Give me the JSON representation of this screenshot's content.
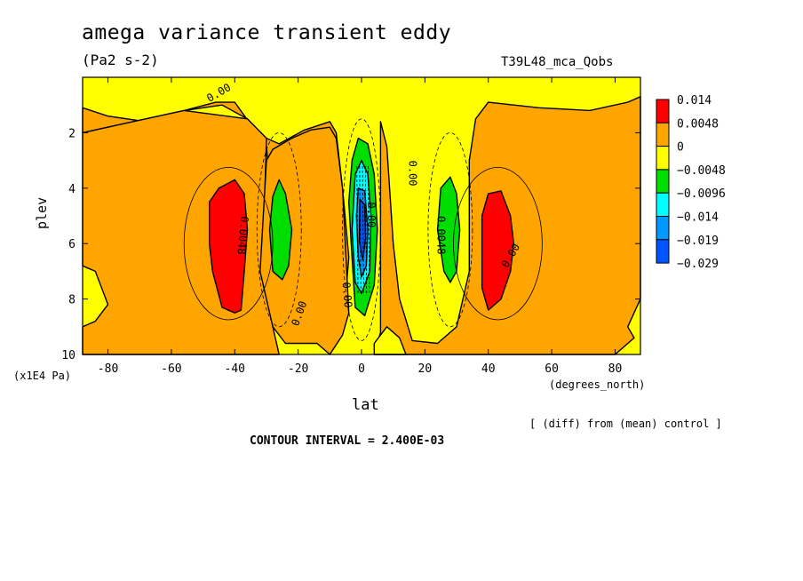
{
  "chart_data": {
    "type": "heatmap",
    "title": "amega variance transient eddy",
    "units": "(Pa2 s-2)",
    "run_label": "T39L48_mca_Qobs",
    "xlabel": "lat",
    "ylabel": "plev",
    "x_unit": "(degrees_north)",
    "y_unit": "(x1E4 Pa)",
    "xlim": [
      -88,
      88
    ],
    "ylim": [
      10,
      0
    ],
    "x_ticks": [
      "-80",
      "-60",
      "-40",
      "-20",
      "0",
      "20",
      "40",
      "60",
      "80"
    ],
    "x_tick_values": [
      -80,
      -60,
      -40,
      -20,
      0,
      20,
      40,
      60,
      80
    ],
    "y_ticks": [
      "2",
      "4",
      "6",
      "8",
      "10"
    ],
    "y_tick_values": [
      2,
      4,
      6,
      8,
      10
    ],
    "legend": {
      "levels": [
        "0.014",
        "0.0048",
        "0",
        "−0.0048",
        "−0.0096",
        "−0.014",
        "−0.019",
        "−0.029"
      ],
      "colors": [
        "#ff0000",
        "#ffa500",
        "#ffff00",
        "#00dd00",
        "#00ffff",
        "#0099ff",
        "#0055ff"
      ]
    },
    "contour_labels": [
      "0.00",
      "0.0048",
      "0.00",
      "0.00",
      "0.00",
      "0.00",
      "0.0048",
      "0.00",
      "0.00",
      "0.00"
    ],
    "regions": [
      {
        "value": "0.0048",
        "color": "#ffa500",
        "points": [
          [
            -88,
            1.1
          ],
          [
            -80,
            1.4
          ],
          [
            -68,
            1.6
          ],
          [
            -56,
            1.2
          ],
          [
            -46,
            0.9
          ],
          [
            -40,
            0.9
          ],
          [
            -30,
            2.5
          ],
          [
            -26,
            8
          ],
          [
            -24,
            8.8
          ],
          [
            -20,
            9.3
          ],
          [
            -12,
            9.4
          ],
          [
            -6,
            9.2
          ],
          [
            -4,
            6.5
          ],
          [
            -6,
            4
          ],
          [
            -8,
            2
          ],
          [
            -10,
            1.6
          ],
          [
            -18,
            1.9
          ],
          [
            -26,
            2.4
          ],
          [
            -32,
            2.1
          ],
          [
            -36,
            1.5
          ],
          [
            -44,
            1
          ],
          [
            -56,
            1.2
          ],
          [
            -88,
            2
          ],
          [
            -88,
            1.1
          ]
        ]
      },
      {
        "value": "0.0048",
        "color": "#ffa500",
        "points": [
          [
            -88,
            2
          ],
          [
            -56,
            1.2
          ],
          [
            -36,
            1.5
          ],
          [
            -30,
            2.2
          ],
          [
            -31,
            6
          ],
          [
            -28,
            9
          ],
          [
            -26,
            10
          ],
          [
            -88,
            10
          ],
          [
            -88,
            9
          ],
          [
            -84,
            8.8
          ],
          [
            -80,
            8.2
          ],
          [
            -84,
            7
          ],
          [
            -88,
            6.8
          ],
          [
            -88,
            2
          ]
        ]
      },
      {
        "value": "0.0048",
        "color": "#ffa500",
        "points": [
          [
            -10,
            10
          ],
          [
            -6,
            9.3
          ],
          [
            -4,
            8.5
          ],
          [
            -6,
            4
          ],
          [
            -8,
            2.2
          ],
          [
            -10,
            1.8
          ],
          [
            -16,
            1.9
          ],
          [
            -22,
            2.2
          ],
          [
            -28,
            2.6
          ],
          [
            -30,
            3
          ],
          [
            -32,
            7
          ],
          [
            -28,
            9
          ],
          [
            -24,
            9.6
          ],
          [
            -14,
            9.6
          ],
          [
            -10,
            10
          ]
        ]
      },
      {
        "value": "0.0048",
        "color": "#ffa500",
        "points": [
          [
            6,
            1.6
          ],
          [
            8,
            2.5
          ],
          [
            10,
            6
          ],
          [
            12,
            8
          ],
          [
            16,
            9.5
          ],
          [
            24,
            9.6
          ],
          [
            30,
            9
          ],
          [
            34,
            7
          ],
          [
            34,
            3
          ],
          [
            36,
            1.5
          ],
          [
            40,
            0.9
          ],
          [
            56,
            1.1
          ],
          [
            72,
            1.2
          ],
          [
            84,
            0.9
          ],
          [
            88,
            0.7
          ],
          [
            88,
            8
          ],
          [
            84,
            9
          ],
          [
            86,
            9.4
          ],
          [
            80,
            10
          ],
          [
            4,
            10
          ],
          [
            6,
            9.2
          ],
          [
            6,
            1.6
          ]
        ]
      },
      {
        "value": "0",
        "color": "#ffff00",
        "points": [
          [
            4,
            9.6
          ],
          [
            8,
            9
          ],
          [
            12,
            9.4
          ],
          [
            14,
            10
          ],
          [
            4,
            10
          ]
        ]
      },
      {
        "value": "0.014",
        "color": "#ff0000",
        "points": [
          [
            -48,
            4.5
          ],
          [
            -45,
            4
          ],
          [
            -40,
            3.7
          ],
          [
            -37,
            4.2
          ],
          [
            -36,
            5.5
          ],
          [
            -37,
            7
          ],
          [
            -38,
            8.4
          ],
          [
            -40,
            8.5
          ],
          [
            -44,
            8.3
          ],
          [
            -47,
            7
          ],
          [
            -48,
            6
          ],
          [
            -48,
            4.5
          ]
        ]
      },
      {
        "value": "0.014",
        "color": "#ff0000",
        "points": [
          [
            38,
            5
          ],
          [
            40,
            4.2
          ],
          [
            44,
            4.1
          ],
          [
            47,
            5
          ],
          [
            48,
            6
          ],
          [
            47,
            7
          ],
          [
            44,
            8
          ],
          [
            40,
            8.4
          ],
          [
            38,
            7.6
          ],
          [
            38,
            6
          ],
          [
            38,
            5
          ]
        ]
      },
      {
        "value": "-0.0048",
        "color": "#00dd00",
        "points": [
          [
            -28,
            4.3
          ],
          [
            -26,
            3.7
          ],
          [
            -24,
            4.2
          ],
          [
            -22,
            5.5
          ],
          [
            -23,
            6.8
          ],
          [
            -25,
            7.3
          ],
          [
            -28,
            7
          ],
          [
            -29,
            5.5
          ],
          [
            -28,
            4.3
          ]
        ]
      },
      {
        "value": "-0.0048",
        "color": "#00dd00",
        "points": [
          [
            25,
            4
          ],
          [
            28,
            3.6
          ],
          [
            30,
            4.2
          ],
          [
            31,
            5.5
          ],
          [
            30,
            7
          ],
          [
            28,
            7.4
          ],
          [
            26,
            7
          ],
          [
            24,
            5.5
          ],
          [
            25,
            4
          ]
        ]
      },
      {
        "value": "-0.0048",
        "color": "#00dd00",
        "points": [
          [
            -3,
            3
          ],
          [
            -1,
            2.2
          ],
          [
            2,
            2.4
          ],
          [
            4,
            3.5
          ],
          [
            5,
            5.5
          ],
          [
            4,
            7.5
          ],
          [
            1,
            8.6
          ],
          [
            -2,
            8.3
          ],
          [
            -3,
            6.5
          ],
          [
            -4,
            4.5
          ],
          [
            -3,
            3
          ]
        ]
      },
      {
        "value": "-0.0096",
        "color": "#00ffff",
        "points": [
          [
            -2,
            3.5
          ],
          [
            0,
            3
          ],
          [
            2,
            3.5
          ],
          [
            3,
            5
          ],
          [
            2.6,
            7
          ],
          [
            0,
            7.8
          ],
          [
            -2,
            7.4
          ],
          [
            -3,
            5.5
          ],
          [
            -2,
            3.5
          ]
        ]
      },
      {
        "value": "-0.014",
        "color": "#0099ff",
        "points": [
          [
            -1,
            4
          ],
          [
            1,
            4.1
          ],
          [
            2,
            5.5
          ],
          [
            1.5,
            6.8
          ],
          [
            0,
            7.2
          ],
          [
            -1,
            6.5
          ],
          [
            -1.6,
            5
          ],
          [
            -1,
            4
          ]
        ]
      },
      {
        "value": "-0.019",
        "color": "#0055ff",
        "points": [
          [
            -0.5,
            4.4
          ],
          [
            1,
            4.6
          ],
          [
            1.3,
            5.8
          ],
          [
            0.4,
            6.6
          ],
          [
            -0.7,
            5.9
          ],
          [
            -0.5,
            4.4
          ]
        ]
      }
    ]
  }
}
